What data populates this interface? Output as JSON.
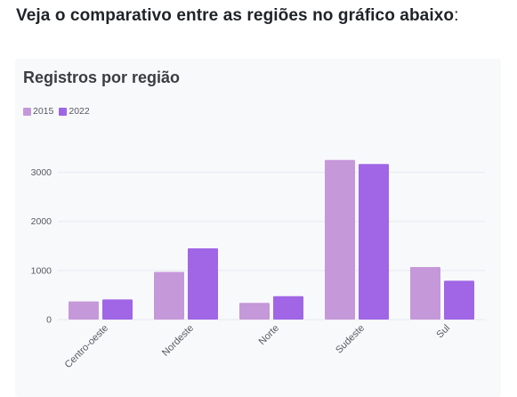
{
  "heading": {
    "text": "Veja o comparativo entre as regiões no gráfico abaixo",
    "suffix": ":"
  },
  "chart_data": {
    "type": "bar",
    "title": "Registros por região",
    "categories": [
      "Centro-oeste",
      "Nordeste",
      "Norte",
      "Sudeste",
      "Sul"
    ],
    "series": [
      {
        "name": "2015",
        "color": "#c598da",
        "values": [
          370,
          970,
          340,
          3250,
          1070
        ]
      },
      {
        "name": "2022",
        "color": "#a066e6",
        "values": [
          410,
          1450,
          475,
          3170,
          790
        ]
      }
    ],
    "xlabel": "",
    "ylabel": "",
    "ylim": [
      0,
      3500
    ],
    "yticks": [
      0,
      1000,
      2000,
      3000
    ],
    "grid": true,
    "legend_position": "top-left",
    "colors": {
      "card_background": "#f8f9fb",
      "grid": "#e6e9ef"
    }
  }
}
